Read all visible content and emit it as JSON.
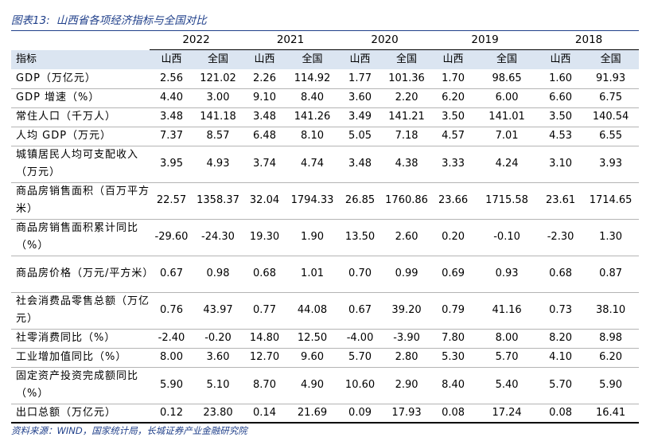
{
  "title": {
    "prefix": "图表13:",
    "text": "山西省各项经济指标与全国对比"
  },
  "years": [
    "2022",
    "2021",
    "2020",
    "2019",
    "2018"
  ],
  "header": {
    "label": "指标",
    "shanxi": "山西",
    "national": "全国"
  },
  "rows": [
    {
      "label": "GDP（万亿元）",
      "values": [
        "2.56",
        "121.02",
        "2.26",
        "114.92",
        "1.77",
        "101.36",
        "1.70",
        "98.65",
        "1.60",
        "91.93"
      ]
    },
    {
      "label": "GDP 增速（%）",
      "values": [
        "4.40",
        "3.00",
        "9.10",
        "8.40",
        "3.60",
        "2.20",
        "6.20",
        "6.00",
        "6.60",
        "6.75"
      ]
    },
    {
      "label": "常住人口（千万人）",
      "values": [
        "3.48",
        "141.18",
        "3.48",
        "141.26",
        "3.49",
        "141.21",
        "3.50",
        "141.01",
        "3.50",
        "140.54"
      ]
    },
    {
      "label": "人均 GDP（万元）",
      "values": [
        "7.37",
        "8.57",
        "6.48",
        "8.10",
        "5.05",
        "7.18",
        "4.57",
        "7.01",
        "4.53",
        "6.55"
      ]
    },
    {
      "label": "城镇居民人均可支配收入（万元）",
      "values": [
        "3.95",
        "4.93",
        "3.74",
        "4.74",
        "3.48",
        "4.38",
        "3.33",
        "4.24",
        "3.10",
        "3.93"
      ]
    },
    {
      "label": "商品房销售面积（百万平方米）",
      "values": [
        "22.57",
        "1358.37",
        "32.04",
        "1794.33",
        "26.85",
        "1760.86",
        "23.66",
        "1715.58",
        "23.61",
        "1714.65"
      ]
    },
    {
      "label": "商品房销售面积累计同比（%）",
      "values": [
        "-29.60",
        "-24.30",
        "19.30",
        "1.90",
        "13.50",
        "2.60",
        "0.20",
        "-0.10",
        "-2.30",
        "1.30"
      ]
    },
    {
      "label": "商品房价格（万元/平方米）",
      "values": [
        "0.67",
        "0.98",
        "0.68",
        "1.01",
        "0.70",
        "0.99",
        "0.69",
        "0.93",
        "0.68",
        "0.87"
      ]
    },
    {
      "label": "社会消费品零售总额（万亿元）",
      "values": [
        "0.76",
        "43.97",
        "0.77",
        "44.08",
        "0.67",
        "39.20",
        "0.79",
        "41.16",
        "0.73",
        "38.10"
      ]
    },
    {
      "label": "社零消费同比（%）",
      "values": [
        "-2.40",
        "-0.20",
        "14.80",
        "12.50",
        "-4.00",
        "-3.90",
        "7.80",
        "8.00",
        "8.20",
        "8.98"
      ]
    },
    {
      "label": "工业增加值同比（%）",
      "values": [
        "8.00",
        "3.60",
        "12.70",
        "9.60",
        "5.70",
        "2.80",
        "5.30",
        "5.70",
        "4.10",
        "6.20"
      ]
    },
    {
      "label": "固定资产投资完成额同比（%）",
      "values": [
        "5.90",
        "5.10",
        "8.70",
        "4.90",
        "10.60",
        "2.90",
        "8.40",
        "5.40",
        "5.70",
        "5.90"
      ]
    },
    {
      "label": "出口总额（万亿元）",
      "values": [
        "0.12",
        "23.80",
        "0.14",
        "21.69",
        "0.09",
        "17.93",
        "0.08",
        "17.24",
        "0.08",
        "16.41"
      ]
    }
  ],
  "footer": "资料来源：WIND，国家统计局，长城证券产业金融研究院"
}
